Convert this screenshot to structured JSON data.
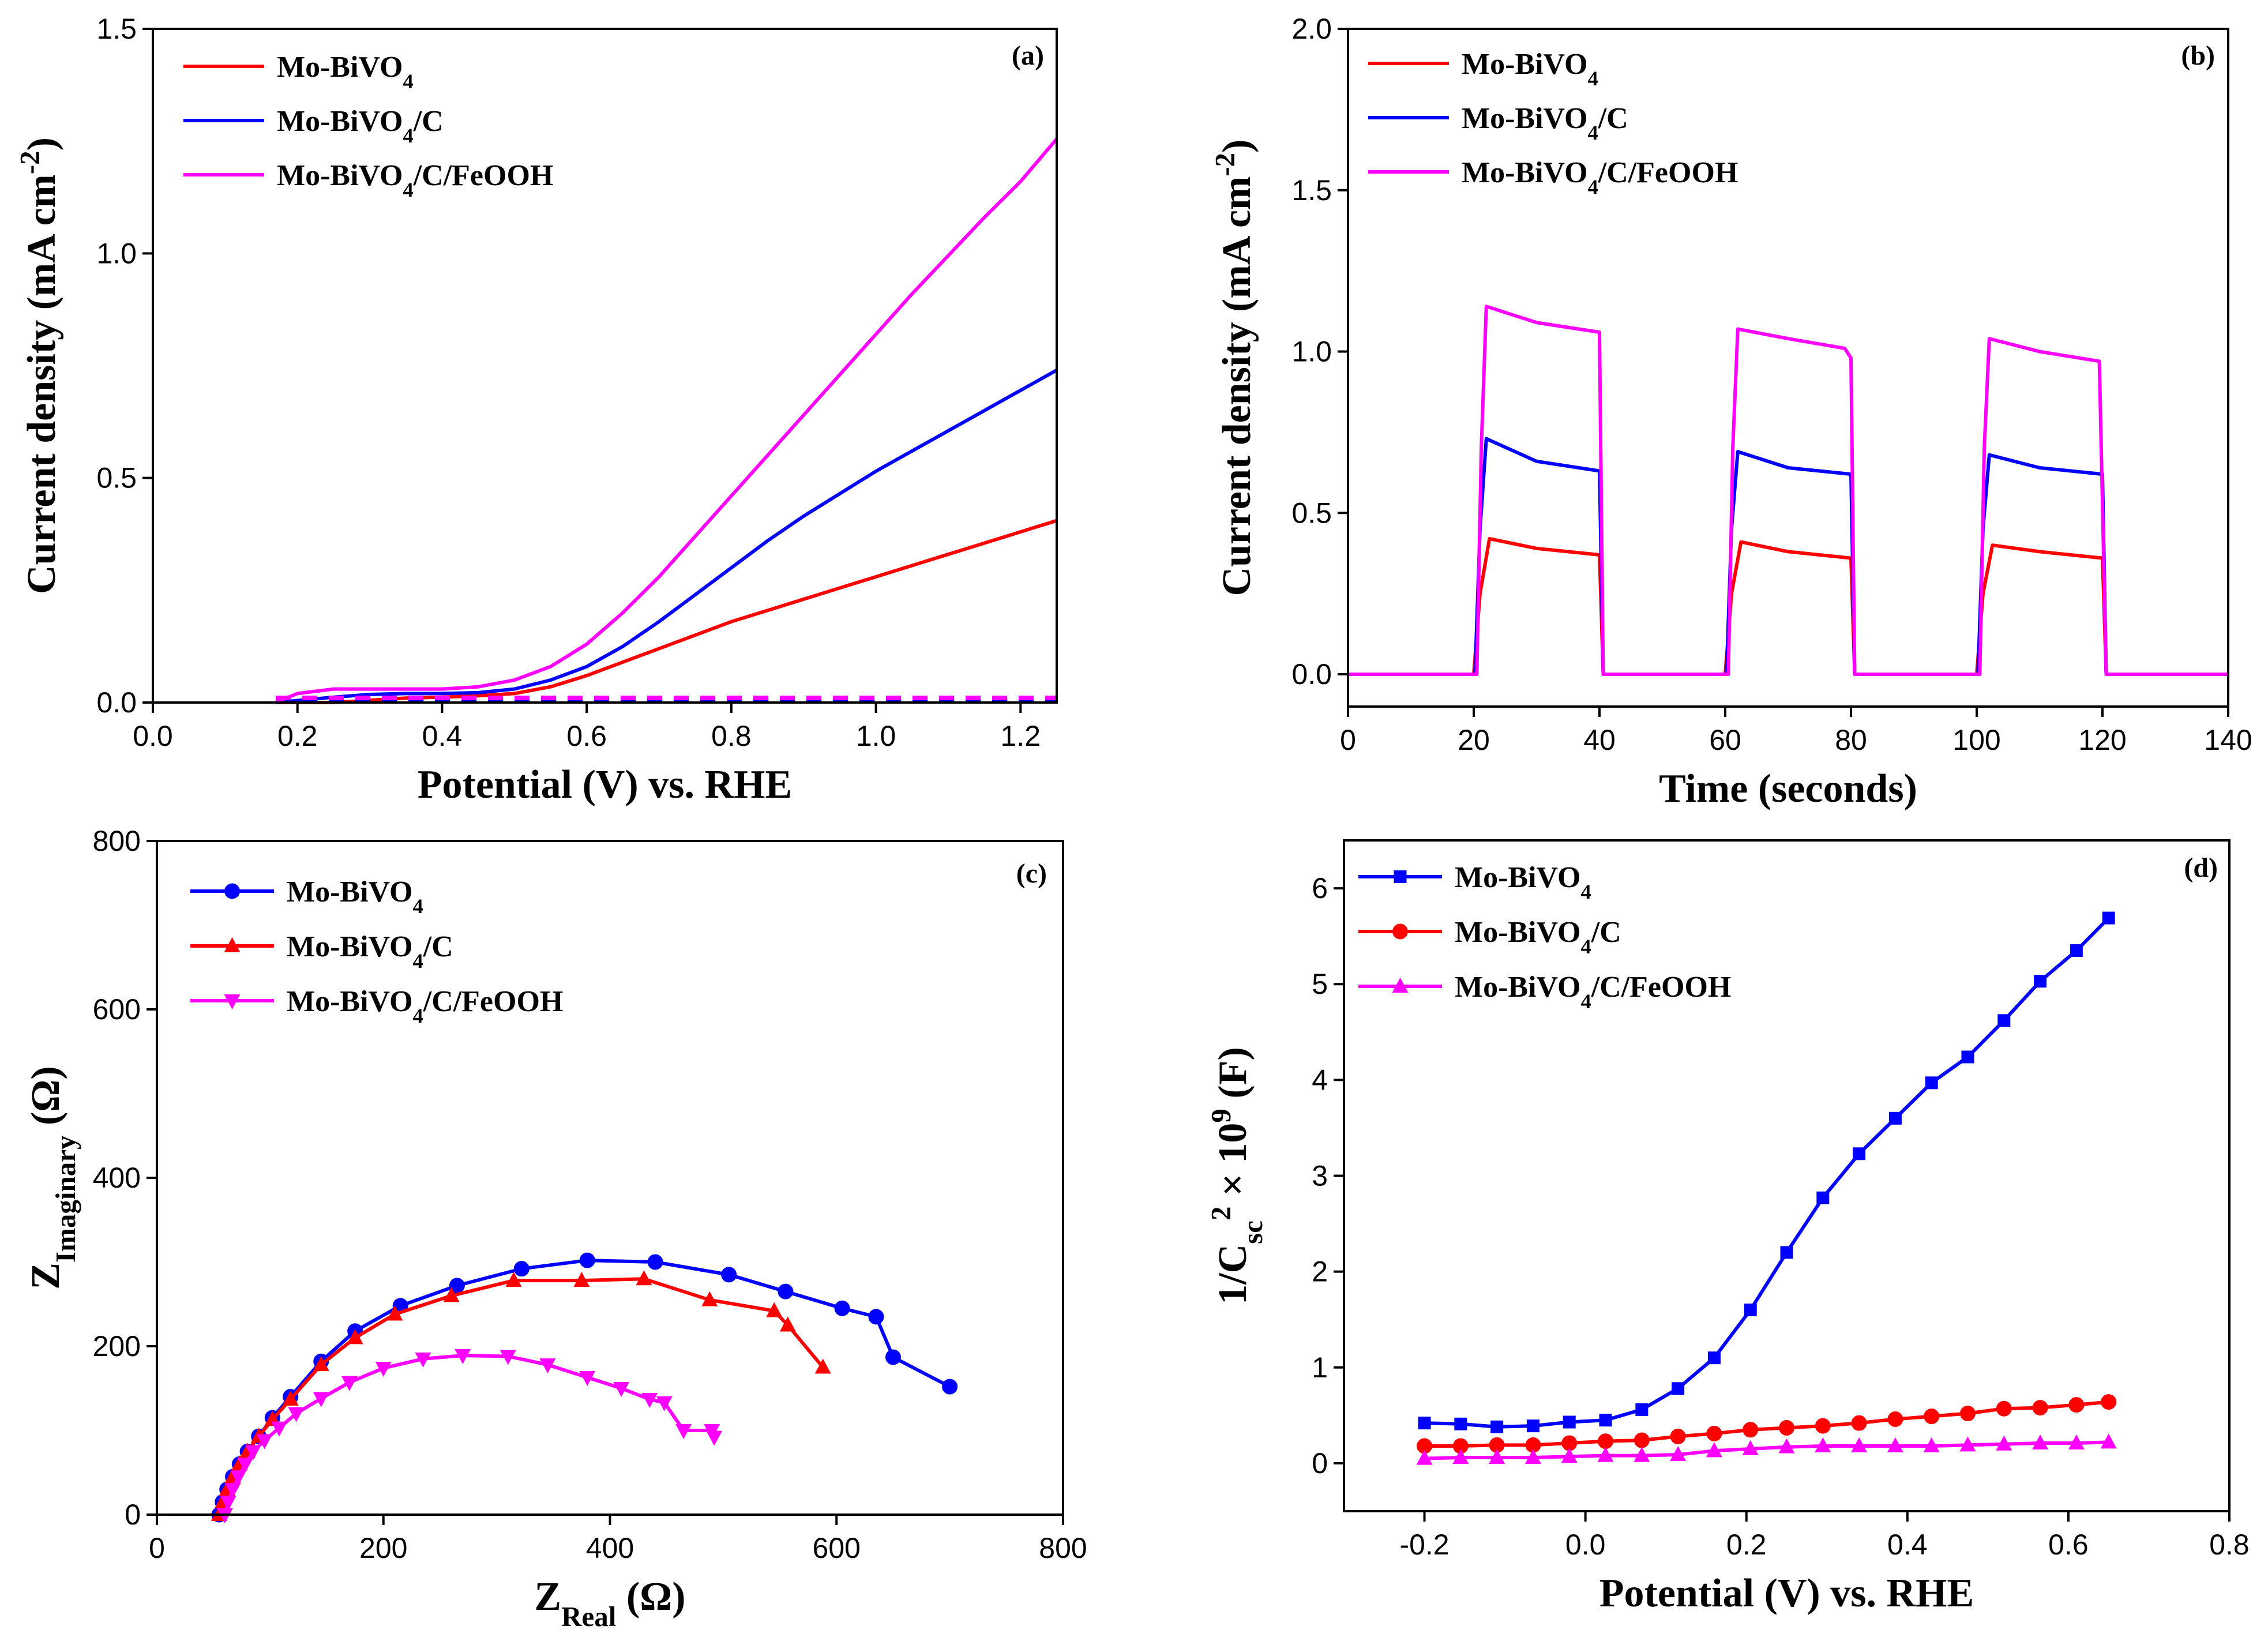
{
  "chart_data": [
    {
      "panel": "(a)",
      "type": "line",
      "xlabel": "Potential (V) vs. RHE",
      "ylabel": "Current density (mA cm-2)",
      "ylabel_parts": {
        "main": "Current density (mA cm",
        "sup": "-2",
        "end": ")"
      },
      "xlim": [
        0.0,
        1.25
      ],
      "ylim": [
        0.0,
        1.5
      ],
      "xticks": [
        0.0,
        0.2,
        0.4,
        0.6,
        0.8,
        1.0,
        1.2
      ],
      "yticks": [
        0.0,
        0.5,
        1.0,
        1.5
      ],
      "tick_decimals": {
        "x": 1,
        "y": 1
      },
      "legend_position": "top-left",
      "series": [
        {
          "name": "Mo-BiVO4",
          "name_parts": {
            "main": "Mo-BiVO",
            "sub": "4",
            "end": ""
          },
          "color": "#ff0000",
          "marker": "none",
          "dark_current": true,
          "x": [
            0.17,
            0.25,
            0.3,
            0.35,
            0.4,
            0.45,
            0.5,
            0.55,
            0.6,
            0.65,
            0.7,
            0.75,
            0.8,
            0.85,
            0.9,
            0.95,
            1.0,
            1.05,
            1.1,
            1.15,
            1.2,
            1.25
          ],
          "y": [
            0.0,
            0.0,
            0.005,
            0.01,
            0.012,
            0.015,
            0.02,
            0.035,
            0.06,
            0.09,
            0.12,
            0.15,
            0.18,
            0.205,
            0.23,
            0.255,
            0.28,
            0.305,
            0.33,
            0.355,
            0.38,
            0.405
          ]
        },
        {
          "name": "Mo-BiVO4/C",
          "name_parts": {
            "main": "Mo-BiVO",
            "sub": "4",
            "end": "/C"
          },
          "color": "#0000ff",
          "marker": "none",
          "dark_current": true,
          "x": [
            0.17,
            0.25,
            0.3,
            0.35,
            0.4,
            0.45,
            0.5,
            0.55,
            0.6,
            0.65,
            0.7,
            0.75,
            0.8,
            0.85,
            0.9,
            0.95,
            1.0,
            1.05,
            1.1,
            1.15,
            1.2,
            1.25
          ],
          "y": [
            0.0,
            0.012,
            0.018,
            0.02,
            0.02,
            0.022,
            0.03,
            0.05,
            0.08,
            0.125,
            0.18,
            0.24,
            0.3,
            0.36,
            0.415,
            0.465,
            0.515,
            0.56,
            0.605,
            0.65,
            0.695,
            0.74
          ]
        },
        {
          "name": "Mo-BiVO4/C/FeOOH",
          "name_parts": {
            "main": "Mo-BiVO",
            "sub": "4",
            "end": "/C/FeOOH"
          },
          "color": "#ff00ff",
          "marker": "none",
          "dark_current": true,
          "x": [
            0.17,
            0.2,
            0.25,
            0.3,
            0.35,
            0.4,
            0.45,
            0.5,
            0.55,
            0.6,
            0.65,
            0.7,
            0.75,
            0.8,
            0.85,
            0.9,
            0.95,
            1.0,
            1.05,
            1.1,
            1.15,
            1.2,
            1.25
          ],
          "y": [
            0.0,
            0.02,
            0.03,
            0.03,
            0.03,
            0.03,
            0.035,
            0.05,
            0.08,
            0.13,
            0.2,
            0.28,
            0.37,
            0.46,
            0.55,
            0.64,
            0.73,
            0.82,
            0.91,
            0.995,
            1.08,
            1.16,
            1.255
          ]
        }
      ]
    },
    {
      "panel": "(b)",
      "type": "line",
      "xlabel": "Time (seconds)",
      "ylabel": "Current density (mA cm-2)",
      "ylabel_parts": {
        "main": "Current density (mA cm",
        "sup": "-2",
        "end": ")"
      },
      "xlim": [
        0,
        140
      ],
      "ylim": [
        -0.1,
        2.0
      ],
      "xticks": [
        0,
        20,
        40,
        60,
        80,
        100,
        120,
        140
      ],
      "yticks": [
        0.0,
        0.5,
        1.0,
        1.5,
        2.0
      ],
      "tick_decimals": {
        "x": 0,
        "y": 1
      },
      "legend_position": "top-left",
      "series": [
        {
          "name": "Mo-BiVO4",
          "name_parts": {
            "main": "Mo-BiVO",
            "sub": "4",
            "end": ""
          },
          "color": "#ff0000",
          "marker": "none",
          "x": [
            0,
            20,
            21,
            22.5,
            30,
            40,
            40.6,
            60,
            61,
            62.5,
            70,
            80,
            80.6,
            100,
            101,
            102.5,
            110,
            120,
            120.6,
            140
          ],
          "y": [
            0,
            0,
            0.25,
            0.42,
            0.39,
            0.37,
            0,
            0,
            0.25,
            0.41,
            0.38,
            0.36,
            0,
            0,
            0.25,
            0.4,
            0.38,
            0.36,
            0,
            0
          ]
        },
        {
          "name": "Mo-BiVO4/C",
          "name_parts": {
            "main": "Mo-BiVO",
            "sub": "4",
            "end": "/C"
          },
          "color": "#0000ff",
          "marker": "none",
          "x": [
            0,
            20.2,
            21,
            22,
            30,
            40,
            40.6,
            60.2,
            61,
            62,
            70,
            80,
            80.6,
            100.2,
            101,
            102,
            110,
            120,
            120.6,
            140
          ],
          "y": [
            0,
            0,
            0.45,
            0.73,
            0.66,
            0.63,
            0,
            0,
            0.45,
            0.69,
            0.64,
            0.62,
            0,
            0,
            0.45,
            0.68,
            0.64,
            0.62,
            0,
            0
          ]
        },
        {
          "name": "Mo-BiVO4/C/FeOOH",
          "name_parts": {
            "main": "Mo-BiVO",
            "sub": "4",
            "end": "/C/FeOOH"
          },
          "color": "#ff00ff",
          "marker": "none",
          "x": [
            0,
            20.5,
            21.2,
            22,
            30,
            40,
            40.6,
            60.5,
            61.2,
            62,
            70,
            79,
            80,
            80.6,
            100.5,
            101.2,
            102,
            110,
            119.5,
            120.6,
            140
          ],
          "y": [
            0,
            0,
            0.7,
            1.14,
            1.09,
            1.06,
            0,
            0,
            0.7,
            1.07,
            1.04,
            1.01,
            0.98,
            0,
            0,
            0.7,
            1.04,
            1.0,
            0.97,
            0,
            0
          ]
        }
      ]
    },
    {
      "panel": "(c)",
      "type": "scatter",
      "xlabel": "ZReal (Ω)",
      "xlabel_parts": {
        "main": "Z",
        "sub": "Real",
        "end": " (Ω)"
      },
      "ylabel": "ZImaginary (Ω)",
      "ylabel_parts": {
        "main": "Z",
        "sub": "Imaginary",
        "end": " (Ω)"
      },
      "xlim": [
        0,
        800
      ],
      "ylim": [
        0,
        800
      ],
      "xticks": [
        0,
        200,
        400,
        600,
        800
      ],
      "yticks": [
        0,
        200,
        400,
        600,
        800
      ],
      "tick_decimals": {
        "x": 0,
        "y": 0
      },
      "legend_position": "top-left",
      "series": [
        {
          "name": "Mo-BiVO4",
          "name_parts": {
            "main": "Mo-BiVO",
            "sub": "4",
            "end": ""
          },
          "color": "#0000ff",
          "marker": "circle",
          "x": [
            55,
            58,
            62,
            67,
            73,
            80,
            90,
            102,
            118,
            145,
            175,
            215,
            265,
            322,
            380,
            440,
            505,
            555,
            605,
            635,
            650,
            700
          ],
          "y": [
            0,
            15,
            30,
            45,
            60,
            75,
            93,
            115,
            140,
            182,
            218,
            248,
            272,
            292,
            302,
            300,
            285,
            265,
            245,
            235,
            187,
            152
          ]
        },
        {
          "name": "Mo-BiVO4/C",
          "name_parts": {
            "main": "Mo-BiVO",
            "sub": "4",
            "end": "/C"
          },
          "color": "#ff0000",
          "marker": "triangle-up",
          "x": [
            55,
            58,
            62,
            67,
            73,
            80,
            90,
            102,
            118,
            145,
            175,
            210,
            260,
            315,
            375,
            430,
            488,
            545,
            557,
            588
          ],
          "y": [
            0,
            15,
            30,
            45,
            60,
            75,
            93,
            113,
            137,
            178,
            210,
            238,
            260,
            278,
            278,
            280,
            255,
            242,
            225,
            175
          ]
        },
        {
          "name": "Mo-BiVO4/C/FeOOH",
          "name_parts": {
            "main": "Mo-BiVO",
            "sub": "4",
            "end": "/C/FeOOH"
          },
          "color": "#ff00ff",
          "marker": "triangle-down",
          "x": [
            60,
            63,
            67,
            72,
            78,
            85,
            95,
            108,
            123,
            145,
            170,
            200,
            235,
            270,
            310,
            345,
            380,
            410,
            435,
            448,
            465,
            490,
            492
          ],
          "y": [
            0,
            15,
            30,
            45,
            60,
            75,
            88,
            103,
            120,
            138,
            157,
            174,
            185,
            189,
            188,
            178,
            163,
            150,
            137,
            133,
            100,
            100,
            92
          ]
        }
      ]
    },
    {
      "panel": "(d)",
      "type": "line",
      "xlabel": "Potential (V) vs. RHE",
      "ylabel": "1/Csc2 × 109 (F)",
      "ylabel_rich": [
        {
          "t": "1/C",
          "s": "n"
        },
        {
          "t": "sc",
          "s": "sub"
        },
        {
          "t": "2",
          "s": "sup"
        },
        {
          "t": " × 10",
          "s": "n"
        },
        {
          "t": "9",
          "s": "sup"
        },
        {
          "t": " (F)",
          "s": "n"
        }
      ],
      "xlim": [
        -0.3,
        0.8
      ],
      "ylim": [
        -0.5,
        6.5
      ],
      "xticks": [
        -0.2,
        0.0,
        0.2,
        0.4,
        0.6,
        0.8
      ],
      "yticks": [
        0,
        1,
        2,
        3,
        4,
        5,
        6
      ],
      "tick_decimals": {
        "x": 1,
        "y": 0
      },
      "legend_position": "top-left",
      "series": [
        {
          "name": "Mo-BiVO4",
          "name_parts": {
            "main": "Mo-BiVO",
            "sub": "4",
            "end": ""
          },
          "color": "#0000ff",
          "marker": "square",
          "x": [
            -0.2,
            -0.155,
            -0.11,
            -0.065,
            -0.02,
            0.025,
            0.07,
            0.115,
            0.16,
            0.205,
            0.25,
            0.295,
            0.34,
            0.385,
            0.43,
            0.475,
            0.52,
            0.565,
            0.61,
            0.65
          ],
          "y": [
            0.42,
            0.41,
            0.38,
            0.39,
            0.43,
            0.45,
            0.56,
            0.78,
            1.1,
            1.6,
            2.2,
            2.77,
            3.23,
            3.6,
            3.97,
            4.24,
            4.62,
            5.03,
            5.35,
            5.69
          ]
        },
        {
          "name": "Mo-BiVO4/C",
          "name_parts": {
            "main": "Mo-BiVO",
            "sub": "4",
            "end": "/C"
          },
          "color": "#ff0000",
          "marker": "circle",
          "x": [
            -0.2,
            -0.155,
            -0.11,
            -0.065,
            -0.02,
            0.025,
            0.07,
            0.115,
            0.16,
            0.205,
            0.25,
            0.295,
            0.34,
            0.385,
            0.43,
            0.475,
            0.52,
            0.565,
            0.61,
            0.65
          ],
          "y": [
            0.18,
            0.18,
            0.19,
            0.19,
            0.21,
            0.23,
            0.24,
            0.28,
            0.31,
            0.35,
            0.37,
            0.39,
            0.42,
            0.46,
            0.49,
            0.52,
            0.57,
            0.58,
            0.61,
            0.64
          ]
        },
        {
          "name": "Mo-BiVO4/C/FeOOH",
          "name_parts": {
            "main": "Mo-BiVO",
            "sub": "4",
            "end": "/C/FeOOH"
          },
          "color": "#ff00ff",
          "marker": "triangle-up",
          "x": [
            -0.2,
            -0.155,
            -0.11,
            -0.065,
            -0.02,
            0.025,
            0.07,
            0.115,
            0.16,
            0.205,
            0.25,
            0.295,
            0.34,
            0.385,
            0.43,
            0.475,
            0.52,
            0.565,
            0.61,
            0.65
          ],
          "y": [
            0.05,
            0.06,
            0.06,
            0.06,
            0.07,
            0.08,
            0.08,
            0.09,
            0.13,
            0.15,
            0.17,
            0.18,
            0.18,
            0.18,
            0.18,
            0.19,
            0.2,
            0.21,
            0.21,
            0.22
          ]
        }
      ]
    }
  ]
}
